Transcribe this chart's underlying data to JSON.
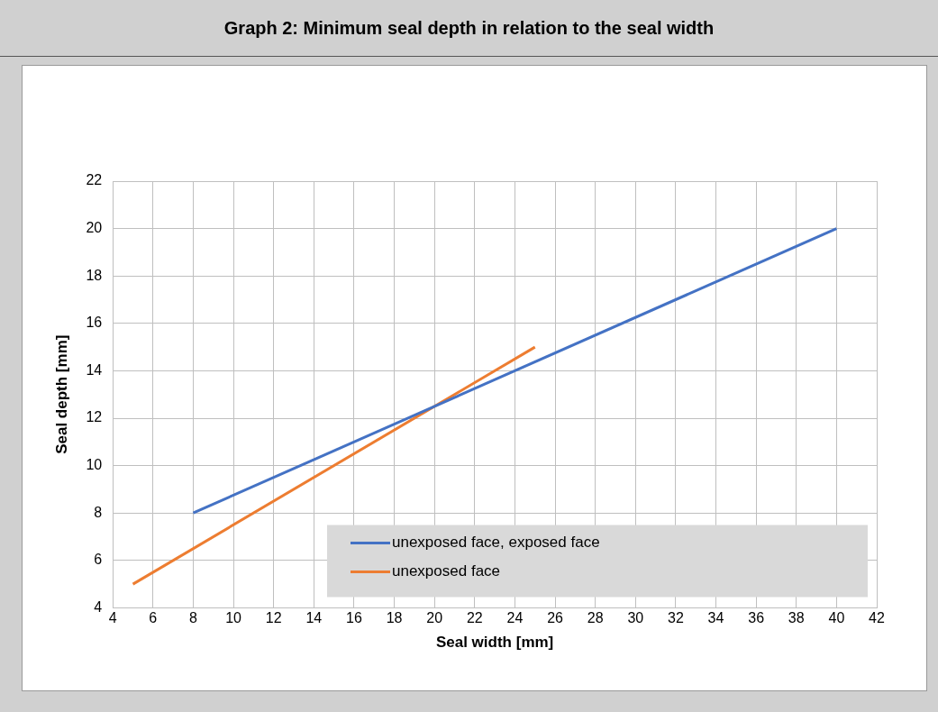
{
  "chart_data": {
    "type": "line",
    "title": "Graph 2: Minimum seal depth in relation to the seal width",
    "xlabel": "Seal width [mm]",
    "ylabel": "Seal depth [mm]",
    "series": [
      {
        "name": "unexposed face, exposed face",
        "color": "#4472c4",
        "x": [
          8,
          40
        ],
        "values": [
          8,
          20
        ]
      },
      {
        "name": "unexposed face",
        "color": "#ed7d31",
        "x": [
          5,
          25
        ],
        "values": [
          5,
          15
        ]
      }
    ],
    "xlim": [
      4,
      42
    ],
    "xticks": [
      4,
      6,
      8,
      10,
      12,
      14,
      16,
      18,
      20,
      22,
      24,
      26,
      28,
      30,
      32,
      34,
      36,
      38,
      40,
      42
    ],
    "ylim": [
      4,
      22
    ],
    "yticks": [
      4,
      6,
      8,
      10,
      12,
      14,
      16,
      18,
      20,
      22
    ],
    "grid": true,
    "legend": "bottom right",
    "marker": "none",
    "line_style": "solid"
  }
}
